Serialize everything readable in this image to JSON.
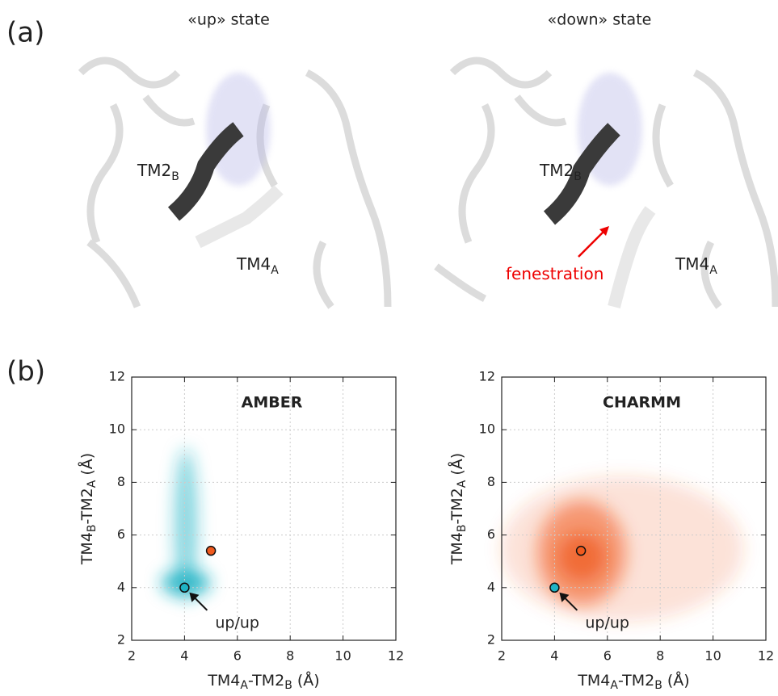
{
  "panel_labels": [
    "(a)",
    "(b)"
  ],
  "images": [
    {
      "title": "«up» state",
      "labels": [
        {
          "main": "TM2",
          "sub": "B"
        },
        {
          "main": "TM4",
          "sub": "A"
        }
      ]
    },
    {
      "title": "«down» state",
      "labels": [
        {
          "main": "TM2",
          "sub": "B"
        },
        {
          "main": "fenestration"
        },
        {
          "main": "TM4",
          "sub": "A"
        }
      ]
    }
  ],
  "chart_data": [
    {
      "type": "scatter",
      "title": "AMBER",
      "xlabel": [
        "TM4",
        "A",
        "-TM2",
        "B",
        " (Å)"
      ],
      "ylabel": [
        "TM4",
        "B",
        "-TM2",
        "A",
        " (Å)"
      ],
      "xlim": [
        2,
        12
      ],
      "ylim": [
        2,
        12
      ],
      "xticks": [
        2,
        4,
        6,
        8,
        10,
        12
      ],
      "yticks": [
        2,
        4,
        6,
        8,
        10,
        12
      ],
      "grid": true,
      "series": [
        {
          "color": "#1fb3c4",
          "x": [
            4
          ],
          "values": [
            4
          ]
        },
        {
          "color": "#f05a1e",
          "x": [
            5
          ],
          "values": [
            5.4
          ]
        }
      ],
      "annotation": "up/up"
    },
    {
      "type": "scatter",
      "title": "CHARMM",
      "xlabel": [
        "TM4",
        "A",
        "-TM2",
        "B",
        " (Å)"
      ],
      "ylabel": [
        "TM4",
        "B",
        "-TM2",
        "A",
        " (Å)"
      ],
      "xlim": [
        2,
        12
      ],
      "ylim": [
        2,
        12
      ],
      "xticks": [
        2,
        4,
        6,
        8,
        10,
        12
      ],
      "yticks": [
        2,
        4,
        6,
        8,
        10,
        12
      ],
      "grid": true,
      "series": [
        {
          "color": "#f05a1e",
          "x": [
            5
          ],
          "values": [
            5.4
          ]
        },
        {
          "color": "#1fb3c4",
          "x": [
            4
          ],
          "values": [
            4
          ]
        }
      ],
      "annotation": "up/up"
    }
  ]
}
